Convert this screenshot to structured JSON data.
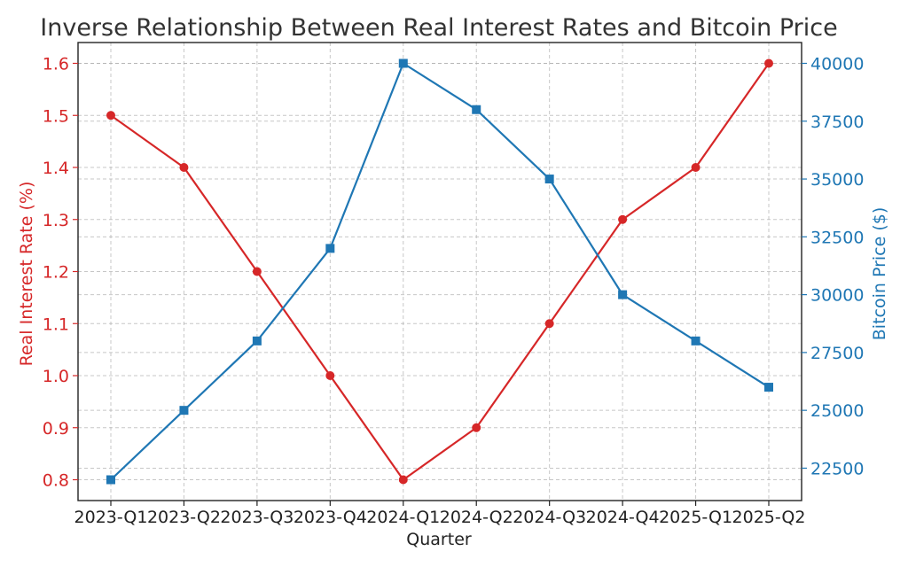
{
  "colors": {
    "rate": "#d62728",
    "price": "#1f77b4",
    "title": "#333333",
    "grid": "#b0b0b0"
  },
  "chart_data": {
    "type": "line",
    "title": "Inverse Relationship Between Real Interest Rates and Bitcoin Price",
    "xlabel": "Quarter",
    "ylabel_left": "Real Interest Rate (%)",
    "ylabel_right": "Bitcoin Price ($)",
    "categories": [
      "2023-Q1",
      "2023-Q2",
      "2023-Q3",
      "2023-Q4",
      "2024-Q1",
      "2024-Q2",
      "2024-Q3",
      "2024-Q4",
      "2025-Q1",
      "2025-Q2"
    ],
    "series": [
      {
        "axis": "left",
        "color": "#d62728",
        "marker": "circle",
        "values": [
          1.5,
          1.4,
          1.2,
          1.0,
          0.8,
          0.9,
          1.1,
          1.3,
          1.4,
          1.6
        ]
      },
      {
        "axis": "right",
        "color": "#1f77b4",
        "marker": "square",
        "values": [
          22000,
          25000,
          28000,
          32000,
          40000,
          38000,
          35000,
          30000,
          28000,
          26000
        ]
      }
    ],
    "ylim_left": [
      0.76,
      1.64
    ],
    "ylim_right": [
      21100,
      40900
    ],
    "yticks_left": [
      "0.8",
      "0.9",
      "1.0",
      "1.1",
      "1.2",
      "1.3",
      "1.4",
      "1.5",
      "1.6"
    ],
    "yticks_right": [
      "22500",
      "25000",
      "27500",
      "30000",
      "32500",
      "35000",
      "37500",
      "40000"
    ],
    "grid": true
  }
}
